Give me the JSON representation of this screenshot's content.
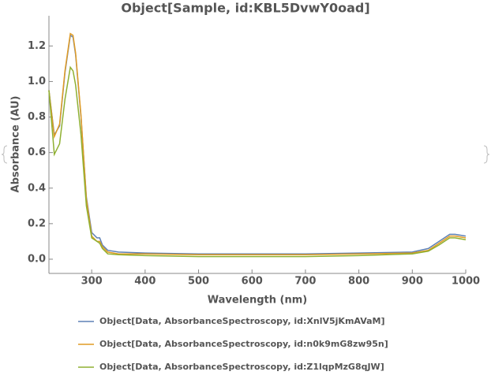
{
  "chart_data": {
    "type": "line",
    "title": "Object[Sample, id:KBL5DvwY0oad]",
    "x_label": "Wavelength (nm)",
    "y_label": "Absorbance (AU)",
    "x": [
      220,
      230,
      240,
      250,
      260,
      265,
      270,
      280,
      290,
      300,
      310,
      315,
      320,
      330,
      350,
      400,
      500,
      600,
      700,
      800,
      900,
      930,
      950,
      970,
      980,
      1000
    ],
    "series": [
      {
        "name": "Object[Data, AbsorbanceSpectroscopy, id:XnlV5jKmAVaM]",
        "color": "#5e81b5",
        "values": [
          0.95,
          0.7,
          0.75,
          1.05,
          1.26,
          1.25,
          1.15,
          0.8,
          0.35,
          0.15,
          0.12,
          0.12,
          0.08,
          0.05,
          0.04,
          0.035,
          0.03,
          0.03,
          0.03,
          0.035,
          0.04,
          0.06,
          0.1,
          0.14,
          0.14,
          0.13
        ]
      },
      {
        "name": "Object[Data, AbsorbanceSpectroscopy, id:n0k9mG8zw95n]",
        "color": "#e19c24",
        "values": [
          0.95,
          0.69,
          0.76,
          1.06,
          1.27,
          1.26,
          1.16,
          0.81,
          0.34,
          0.13,
          0.1,
          0.1,
          0.07,
          0.04,
          0.03,
          0.03,
          0.025,
          0.025,
          0.025,
          0.03,
          0.035,
          0.05,
          0.09,
          0.13,
          0.13,
          0.12
        ]
      },
      {
        "name": "Object[Data, AbsorbanceSpectroscopy, id:Z1lqpMzG8qJW]",
        "color": "#8fb032",
        "values": [
          0.95,
          0.59,
          0.65,
          0.9,
          1.08,
          1.06,
          0.98,
          0.7,
          0.3,
          0.12,
          0.1,
          0.09,
          0.06,
          0.03,
          0.025,
          0.02,
          0.015,
          0.015,
          0.015,
          0.02,
          0.03,
          0.045,
          0.08,
          0.12,
          0.12,
          0.11
        ]
      }
    ],
    "xlim": [
      220,
      1000
    ],
    "xticks": [
      300,
      400,
      500,
      600,
      700,
      800,
      900,
      1000
    ],
    "ylim": [
      -0.08,
      1.37
    ],
    "yticks": [
      {
        "value": 0,
        "label": "0.0"
      },
      0.2,
      0.4,
      0.6,
      0.8,
      {
        "value": 1,
        "label": "1.0"
      },
      1.2
    ]
  }
}
